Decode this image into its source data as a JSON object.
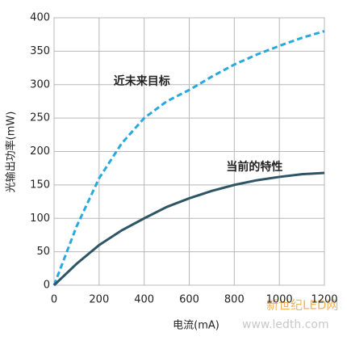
{
  "chart_data": {
    "type": "line",
    "x_label": "电流(mA)",
    "y_label": "光输出功率(mW)",
    "x": [
      0,
      100,
      200,
      300,
      400,
      500,
      600,
      700,
      800,
      900,
      1000,
      1100,
      1200
    ],
    "series": [
      {
        "name": "近未来目标",
        "color": "#29a8e0",
        "dashed": true,
        "values": [
          0,
          88,
          160,
          212,
          250,
          275,
          292,
          312,
          330,
          345,
          358,
          370,
          380
        ]
      },
      {
        "name": "当前的特性",
        "color": "#2e5566",
        "dashed": false,
        "values": [
          0,
          32,
          60,
          82,
          100,
          117,
          130,
          141,
          150,
          157,
          162,
          166,
          168
        ]
      }
    ],
    "xlim": [
      0,
      1200
    ],
    "xticks": [
      0,
      200,
      400,
      600,
      800,
      1000,
      1200
    ],
    "ylim": [
      0,
      400
    ],
    "yticks": [
      0,
      50,
      100,
      150,
      200,
      250,
      300,
      350,
      400
    ],
    "grid": true,
    "watermark": [
      "新世纪LED网",
      "www.ledth.com"
    ]
  }
}
